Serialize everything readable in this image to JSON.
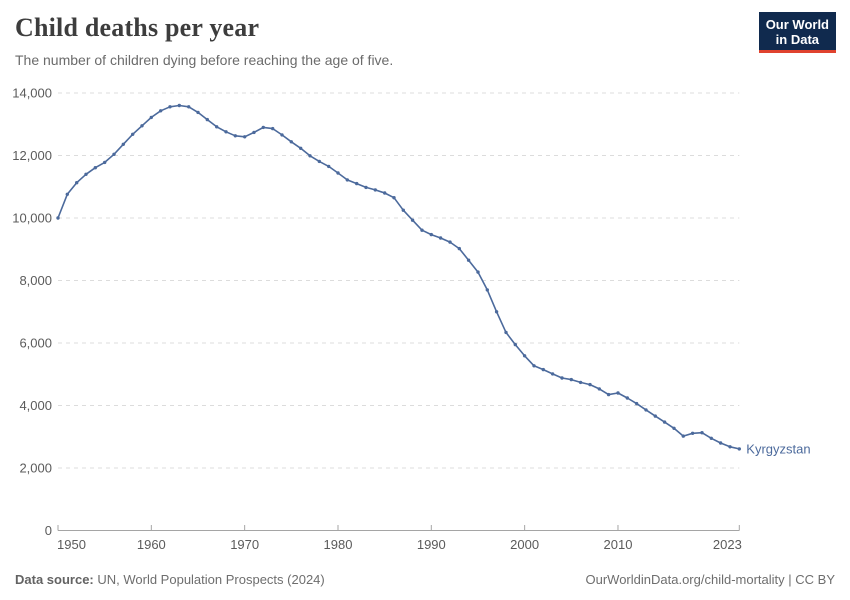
{
  "header": {
    "title": "Child deaths per year",
    "subtitle": "The number of children dying before reaching the age of five.",
    "logo": {
      "line1": "Our World",
      "line2": "in Data",
      "bg_color": "#102a4e",
      "accent_color": "#e0422e"
    }
  },
  "chart_data": {
    "type": "line",
    "title": "Child deaths per year",
    "subtitle": "The number of children dying before reaching the age of five.",
    "xlabel": "",
    "ylabel": "",
    "xlim": [
      1950,
      2023
    ],
    "ylim": [
      0,
      14000
    ],
    "x_ticks": [
      1950,
      1960,
      1970,
      1980,
      1990,
      2000,
      2010,
      2023
    ],
    "y_ticks": [
      0,
      2000,
      4000,
      6000,
      8000,
      10000,
      12000,
      14000
    ],
    "grid": "horizontal-dashed",
    "legend_position": "end-of-line-label",
    "series": [
      {
        "name": "Kyrgyzstan",
        "color": "#4c6a9c",
        "x": [
          1950,
          1951,
          1952,
          1953,
          1954,
          1955,
          1956,
          1957,
          1958,
          1959,
          1960,
          1961,
          1962,
          1963,
          1964,
          1965,
          1966,
          1967,
          1968,
          1969,
          1970,
          1971,
          1972,
          1973,
          1974,
          1975,
          1976,
          1977,
          1978,
          1979,
          1980,
          1981,
          1982,
          1983,
          1984,
          1985,
          1986,
          1987,
          1988,
          1989,
          1990,
          1991,
          1992,
          1993,
          1994,
          1995,
          1996,
          1997,
          1998,
          1999,
          2000,
          2001,
          2002,
          2003,
          2004,
          2005,
          2006,
          2007,
          2008,
          2009,
          2010,
          2011,
          2012,
          2013,
          2014,
          2015,
          2016,
          2017,
          2018,
          2019,
          2020,
          2021,
          2022,
          2023
        ],
        "values": [
          10000,
          10760,
          11130,
          11400,
          11610,
          11780,
          12040,
          12360,
          12680,
          12950,
          13220,
          13430,
          13560,
          13600,
          13560,
          13380,
          13150,
          12920,
          12760,
          12630,
          12600,
          12740,
          12900,
          12860,
          12660,
          12440,
          12230,
          11990,
          11810,
          11650,
          11440,
          11220,
          11100,
          10980,
          10900,
          10800,
          10650,
          10250,
          9930,
          9610,
          9470,
          9360,
          9230,
          9020,
          8650,
          8270,
          7700,
          7000,
          6340,
          5950,
          5590,
          5270,
          5150,
          5010,
          4880,
          4830,
          4740,
          4670,
          4530,
          4350,
          4400,
          4240,
          4060,
          3860,
          3660,
          3470,
          3270,
          3020,
          3110,
          3130,
          2950,
          2800,
          2680,
          2610
        ]
      }
    ]
  },
  "footer": {
    "source_label": "Data source:",
    "source_text": " UN, World Population Prospects (2024)",
    "link_text": "OurWorldinData.org/child-mortality | CC BY"
  },
  "colors": {
    "line": "#4c6a9c",
    "grid": "#dcdcdc",
    "axis": "#a5a5a5",
    "tick_label": "#5b5b5b",
    "entity_label": "#4c6a9c"
  }
}
